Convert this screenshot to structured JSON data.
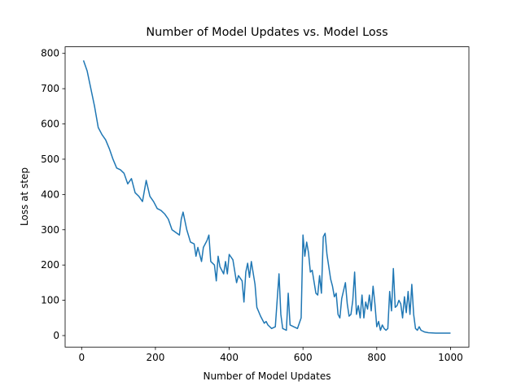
{
  "chart_data": {
    "type": "line",
    "title": "Number of Model Updates vs. Model Loss",
    "x_label": "Number of Model Updates",
    "y_label": "Loss at step",
    "x": [
      5,
      15,
      25,
      35,
      45,
      55,
      65,
      75,
      85,
      95,
      105,
      115,
      125,
      135,
      145,
      155,
      165,
      175,
      185,
      195,
      205,
      215,
      225,
      235,
      245,
      265,
      270,
      275,
      285,
      295,
      305,
      310,
      315,
      325,
      330,
      340,
      345,
      350,
      360,
      365,
      370,
      375,
      385,
      390,
      395,
      400,
      410,
      420,
      425,
      435,
      440,
      445,
      450,
      455,
      460,
      470,
      475,
      485,
      495,
      500,
      505,
      515,
      525,
      530,
      535,
      540,
      545,
      555,
      560,
      565,
      575,
      585,
      595,
      600,
      605,
      610,
      615,
      620,
      625,
      635,
      640,
      645,
      650,
      655,
      660,
      665,
      675,
      680,
      685,
      690,
      695,
      700,
      705,
      715,
      720,
      725,
      730,
      735,
      740,
      745,
      750,
      755,
      760,
      765,
      770,
      775,
      780,
      785,
      790,
      795,
      800,
      805,
      810,
      815,
      820,
      825,
      830,
      835,
      840,
      845,
      850,
      855,
      860,
      865,
      870,
      875,
      880,
      885,
      890,
      895,
      900,
      905,
      910,
      915,
      920,
      930,
      940,
      960,
      980,
      1000
    ],
    "series": [
      {
        "name": "loss",
        "color": "#1f77b4",
        "values": [
          780,
          750,
          700,
          650,
          590,
          570,
          555,
          530,
          500,
          475,
          470,
          460,
          430,
          445,
          405,
          395,
          380,
          440,
          395,
          380,
          360,
          355,
          345,
          330,
          300,
          285,
          330,
          350,
          300,
          265,
          260,
          225,
          250,
          210,
          250,
          270,
          285,
          210,
          200,
          155,
          225,
          195,
          175,
          210,
          175,
          230,
          215,
          150,
          170,
          155,
          95,
          180,
          205,
          165,
          210,
          145,
          80,
          55,
          35,
          40,
          30,
          20,
          25,
          100,
          175,
          60,
          20,
          15,
          120,
          30,
          25,
          20,
          50,
          285,
          225,
          265,
          235,
          180,
          185,
          120,
          115,
          170,
          120,
          280,
          290,
          230,
          160,
          140,
          110,
          120,
          60,
          50,
          105,
          150,
          90,
          55,
          60,
          100,
          180,
          60,
          85,
          50,
          115,
          50,
          95,
          75,
          115,
          70,
          140,
          90,
          25,
          40,
          15,
          30,
          20,
          15,
          20,
          125,
          70,
          190,
          80,
          85,
          100,
          90,
          50,
          110,
          65,
          125,
          60,
          145,
          60,
          20,
          15,
          25,
          15,
          10,
          8,
          7,
          7,
          7
        ]
      }
    ],
    "xlim": [
      -44.75,
      1049.75
    ],
    "ylim": [
      -32.7,
      818.7
    ],
    "xticks": [
      0,
      200,
      400,
      600,
      800,
      1000
    ],
    "yticks": [
      0,
      100,
      200,
      300,
      400,
      500,
      600,
      700,
      800
    ]
  }
}
